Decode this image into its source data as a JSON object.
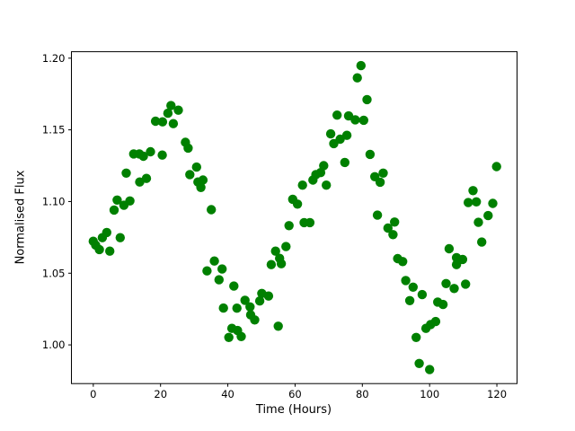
{
  "figure": {
    "background_color": "#ffffff",
    "text_color": "#000000",
    "spine_color": "#000000"
  },
  "chart_data": {
    "type": "scatter",
    "xlabel": "Time (Hours)",
    "ylabel": "Normalised Flux",
    "grid": false,
    "legend": null,
    "marker": {
      "shape": "circle",
      "color": "#008000",
      "radius_px": 5.2
    },
    "xlim": [
      -6.5,
      126
    ],
    "ylim": [
      0.973,
      1.2045
    ],
    "xticks": {
      "values": [
        0,
        20,
        40,
        60,
        80,
        100,
        120
      ],
      "labels": [
        "0",
        "20",
        "40",
        "60",
        "80",
        "100",
        "120"
      ]
    },
    "yticks": {
      "values": [
        1.0,
        1.05,
        1.1,
        1.15,
        1.2
      ],
      "labels": [
        "1.00",
        "1.05",
        "1.10",
        "1.15",
        "1.20"
      ]
    },
    "points": [
      [
        0.0,
        1.0723
      ],
      [
        0.7,
        1.0696
      ],
      [
        1.8,
        1.0665
      ],
      [
        2.7,
        1.0748
      ],
      [
        4.0,
        1.0784
      ],
      [
        4.9,
        1.0654
      ],
      [
        6.2,
        1.0941
      ],
      [
        7.1,
        1.101
      ],
      [
        8.0,
        1.0748
      ],
      [
        9.1,
        1.0974
      ],
      [
        9.8,
        1.1198
      ],
      [
        10.9,
        1.1004
      ],
      [
        12.0,
        1.1332
      ],
      [
        13.7,
        1.1332
      ],
      [
        13.8,
        1.1136
      ],
      [
        14.9,
        1.1316
      ],
      [
        15.8,
        1.1161
      ],
      [
        17.0,
        1.1347
      ],
      [
        18.5,
        1.156
      ],
      [
        20.5,
        1.1324
      ],
      [
        20.6,
        1.1556
      ],
      [
        22.2,
        1.1616
      ],
      [
        23.1,
        1.1669
      ],
      [
        23.8,
        1.1543
      ],
      [
        25.3,
        1.1637
      ],
      [
        27.4,
        1.1413
      ],
      [
        28.2,
        1.1373
      ],
      [
        28.7,
        1.1188
      ],
      [
        30.7,
        1.124
      ],
      [
        31.1,
        1.1136
      ],
      [
        32.0,
        1.1098
      ],
      [
        32.6,
        1.115
      ],
      [
        33.8,
        1.0516
      ],
      [
        35.1,
        1.0943
      ],
      [
        36.0,
        1.0585
      ],
      [
        37.4,
        1.0454
      ],
      [
        38.3,
        1.0529
      ],
      [
        38.7,
        1.0257
      ],
      [
        40.3,
        1.0052
      ],
      [
        41.2,
        1.0115
      ],
      [
        41.8,
        1.041
      ],
      [
        42.7,
        1.0256
      ],
      [
        42.9,
        1.01
      ],
      [
        44.0,
        1.0058
      ],
      [
        45.1,
        1.0311
      ],
      [
        46.6,
        1.0265
      ],
      [
        46.8,
        1.0209
      ],
      [
        48.0,
        1.0174
      ],
      [
        49.5,
        1.0306
      ],
      [
        50.1,
        1.0359
      ],
      [
        52.1,
        1.0341
      ],
      [
        52.9,
        1.056
      ],
      [
        54.2,
        1.0654
      ],
      [
        55.0,
        1.013
      ],
      [
        55.4,
        1.0604
      ],
      [
        55.9,
        1.0566
      ],
      [
        57.3,
        1.0686
      ],
      [
        58.2,
        1.0832
      ],
      [
        59.3,
        1.1016
      ],
      [
        60.7,
        1.0982
      ],
      [
        62.2,
        1.1114
      ],
      [
        62.7,
        1.0853
      ],
      [
        64.4,
        1.0853
      ],
      [
        65.3,
        1.115
      ],
      [
        66.2,
        1.1188
      ],
      [
        67.6,
        1.1202
      ],
      [
        68.5,
        1.125
      ],
      [
        69.3,
        1.1114
      ],
      [
        70.6,
        1.1472
      ],
      [
        71.5,
        1.1404
      ],
      [
        72.5,
        1.1603
      ],
      [
        73.4,
        1.1435
      ],
      [
        74.8,
        1.1273
      ],
      [
        75.4,
        1.1462
      ],
      [
        75.9,
        1.1597
      ],
      [
        77.9,
        1.157
      ],
      [
        78.5,
        1.1863
      ],
      [
        79.6,
        1.1948
      ],
      [
        80.4,
        1.1567
      ],
      [
        81.4,
        1.1711
      ],
      [
        82.3,
        1.1329
      ],
      [
        83.7,
        1.1173
      ],
      [
        84.5,
        1.0905
      ],
      [
        85.3,
        1.1135
      ],
      [
        86.2,
        1.1198
      ],
      [
        87.6,
        1.0815
      ],
      [
        89.1,
        1.0769
      ],
      [
        89.6,
        1.0857
      ],
      [
        90.5,
        1.0602
      ],
      [
        92.0,
        1.0581
      ],
      [
        92.9,
        1.0449
      ],
      [
        94.1,
        1.0309
      ],
      [
        95.1,
        1.0403
      ],
      [
        96.0,
        1.0052
      ],
      [
        96.9,
        0.987
      ],
      [
        97.8,
        1.0351
      ],
      [
        98.9,
        1.0115
      ],
      [
        100.0,
        0.9828
      ],
      [
        100.3,
        1.0142
      ],
      [
        101.8,
        1.0163
      ],
      [
        102.4,
        1.0299
      ],
      [
        104.0,
        1.0282
      ],
      [
        104.9,
        1.0428
      ],
      [
        105.8,
        1.0671
      ],
      [
        107.3,
        1.0393
      ],
      [
        108.0,
        1.056
      ],
      [
        108.0,
        1.0609
      ],
      [
        109.8,
        1.0596
      ],
      [
        110.7,
        1.0424
      ],
      [
        111.5,
        1.0993
      ],
      [
        112.9,
        1.1076
      ],
      [
        113.9,
        1.0998
      ],
      [
        114.5,
        1.0855
      ],
      [
        115.5,
        1.0717
      ],
      [
        117.4,
        1.0902
      ],
      [
        118.8,
        1.0987
      ],
      [
        119.9,
        1.1244
      ]
    ]
  }
}
